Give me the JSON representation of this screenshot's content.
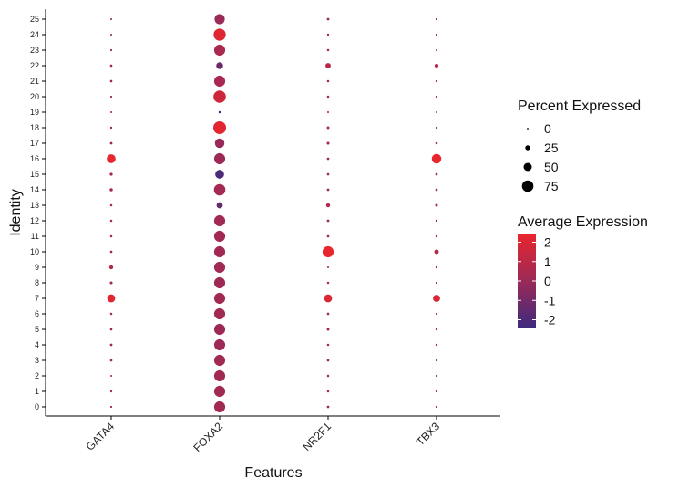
{
  "chart_data": {
    "type": "scatter",
    "subtype": "dot-plot",
    "xlabel": "Features",
    "ylabel": "Identity",
    "features": [
      "GATA4",
      "FOXA2",
      "NR2F1",
      "TBX3"
    ],
    "identities": [
      "0",
      "1",
      "2",
      "3",
      "4",
      "5",
      "6",
      "7",
      "8",
      "9",
      "10",
      "11",
      "12",
      "13",
      "14",
      "15",
      "16",
      "17",
      "18",
      "19",
      "20",
      "21",
      "22",
      "23",
      "24",
      "25"
    ],
    "size_legend": {
      "title": "Percent Expressed",
      "breaks": [
        0,
        25,
        50,
        75
      ],
      "labels": [
        "0",
        "25",
        "50",
        "75"
      ]
    },
    "color_legend": {
      "title": "Average Expression",
      "breaks": [
        2,
        1,
        0,
        -1,
        -2
      ],
      "labels": [
        "2",
        "1",
        "0",
        "-1",
        "-2"
      ],
      "low_color": "#3f2a7e",
      "high_color": "#e8262e",
      "range": [
        -2.4,
        2.4
      ]
    },
    "series": [
      {
        "name": "GATA4",
        "pct": [
          3,
          4,
          2,
          6,
          7,
          6,
          5,
          48,
          9,
          18,
          6,
          5,
          5,
          5,
          12,
          10,
          55,
          7,
          4,
          2,
          3,
          6,
          6,
          3,
          2,
          2
        ],
        "avg": [
          0.1,
          0.1,
          0,
          0.1,
          0.1,
          0.1,
          0.1,
          2.1,
          0.3,
          0.8,
          0.2,
          0.1,
          0.1,
          0.1,
          0.3,
          0.3,
          2.4,
          0.2,
          0.1,
          0,
          0,
          0.1,
          0.2,
          0.1,
          0,
          0
        ]
      },
      {
        "name": "FOXA2",
        "pct": [
          72,
          72,
          72,
          72,
          72,
          72,
          72,
          72,
          72,
          72,
          72,
          72,
          72,
          35,
          75,
          55,
          72,
          60,
          85,
          5,
          82,
          72,
          40,
          72,
          80,
          65
        ],
        "avg": [
          0.2,
          0.2,
          0.2,
          0.2,
          0.1,
          0.1,
          0.2,
          0.2,
          0.1,
          0.2,
          0.2,
          0.2,
          0.2,
          -1.4,
          0.3,
          -2.0,
          0.1,
          0.0,
          2.2,
          -2.2,
          1.6,
          0.4,
          -1.2,
          0.5,
          2.1,
          0.0
        ]
      },
      {
        "name": "NR2F1",
        "pct": [
          6,
          5,
          5,
          6,
          5,
          8,
          6,
          48,
          5,
          2,
          72,
          6,
          7,
          18,
          7,
          6,
          6,
          9,
          8,
          2,
          5,
          5,
          28,
          5,
          4,
          7
        ],
        "avg": [
          0.2,
          0.1,
          0.1,
          0.1,
          0.1,
          0.2,
          0.2,
          1.9,
          0.1,
          0,
          2.4,
          0.1,
          0.2,
          0.7,
          0.2,
          0.1,
          0.2,
          0.4,
          0.3,
          0,
          0.1,
          0.1,
          1.0,
          0.1,
          0,
          0.2
        ]
      },
      {
        "name": "TBX3",
        "pct": [
          3,
          3,
          3,
          3,
          4,
          4,
          3,
          42,
          3,
          4,
          22,
          4,
          4,
          8,
          6,
          6,
          60,
          5,
          3,
          1,
          3,
          3,
          17,
          2,
          3,
          3
        ],
        "avg": [
          0.1,
          0.1,
          0.1,
          0.1,
          0.1,
          0.1,
          0.1,
          2.0,
          0.1,
          0.1,
          0.9,
          0.1,
          0.1,
          0.3,
          0.2,
          0.2,
          2.4,
          0.2,
          0.1,
          0,
          0.1,
          0.1,
          0.9,
          0,
          0.1,
          0.1
        ]
      }
    ],
    "grid": false,
    "legend_position": "right"
  }
}
